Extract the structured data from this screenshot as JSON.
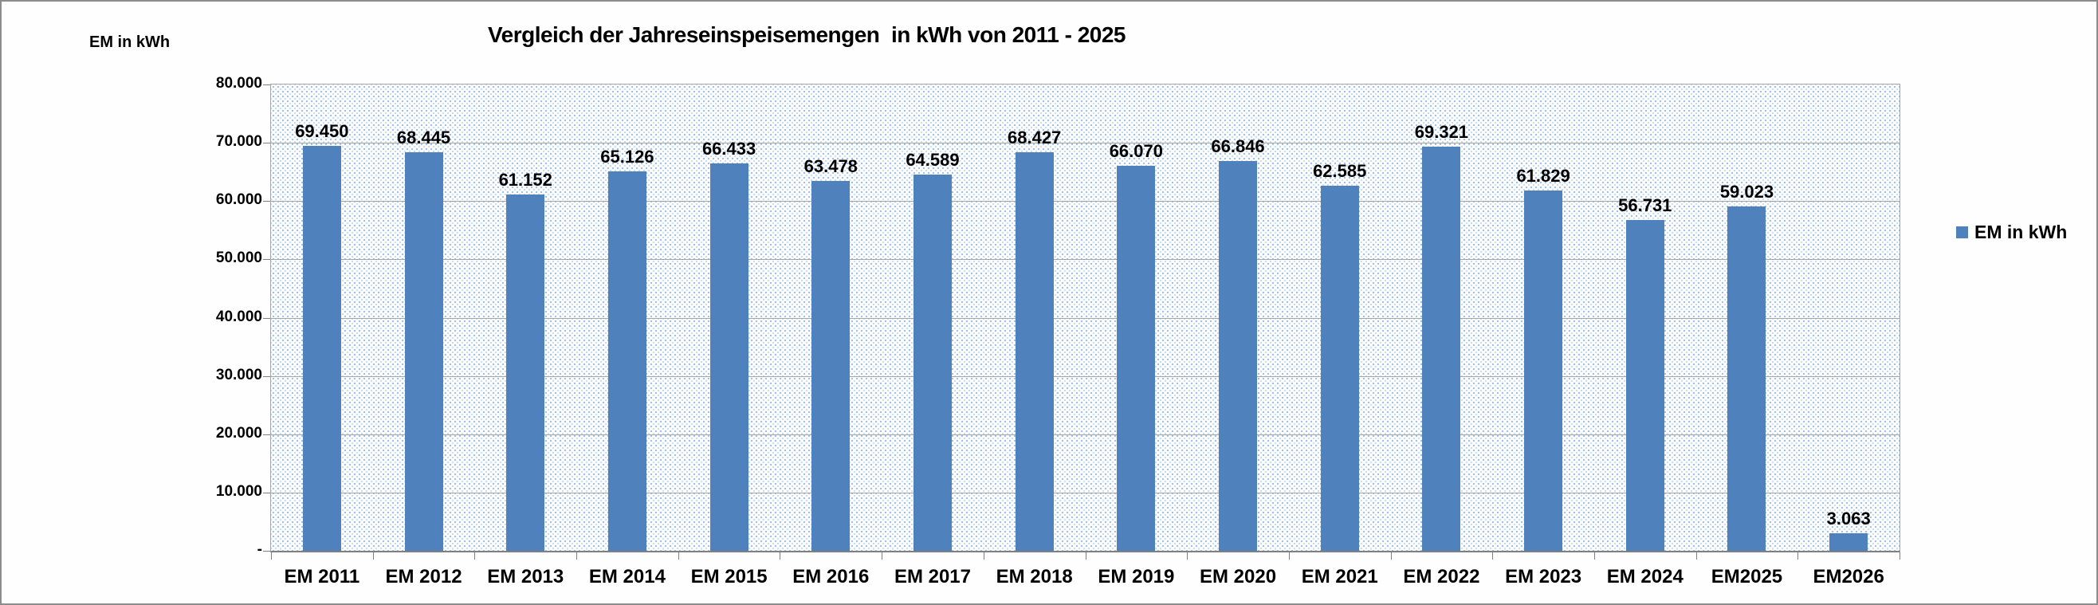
{
  "chart_data": {
    "type": "bar",
    "title": "Vergleich der Jahreseinspeisemengen  in kWh von 2011 - 2025",
    "y_axis_title": "EM in kWh",
    "legend": {
      "label": "EM in kWh",
      "position": "right",
      "swatch_color": "#4F81BD"
    },
    "categories": [
      "EM 2011",
      "EM 2012",
      "EM 2013",
      "EM 2014",
      "EM 2015",
      "EM 2016",
      "EM 2017",
      "EM 2018",
      "EM 2019",
      "EM 2020",
      "EM 2021",
      "EM 2022",
      "EM 2023",
      "EM 2024",
      "EM2025",
      "EM2026"
    ],
    "series": [
      {
        "name": "EM in kWh",
        "values": [
          69450,
          68445,
          61152,
          65126,
          66433,
          63478,
          64589,
          68427,
          66070,
          66846,
          62585,
          69321,
          61829,
          56731,
          59023,
          3063
        ],
        "data_labels": [
          "69.450",
          "68.445",
          "61.152",
          "65.126",
          "66.433",
          "63.478",
          "64.589",
          "68.427",
          "66.070",
          "66.846",
          "62.585",
          "69.321",
          "61.829",
          "56.731",
          "59.023",
          "3.063"
        ]
      }
    ],
    "ylim": [
      0,
      80000
    ],
    "ytick_step": 10000,
    "ytick_labels_bottom_to_top": [
      "-",
      "10.000",
      "20.000",
      "30.000",
      "40.000",
      "50.000",
      "60.000",
      "70.000",
      "80.000"
    ],
    "grid": true,
    "colors": {
      "bar": "#4F81BD",
      "gridline": "#A6A6A6",
      "axis": "#808080",
      "text": "#000000",
      "plot_pattern_dot": "#9FC0E2",
      "background": "#FFFFFF",
      "outer_border": "#8C8C8C"
    }
  }
}
